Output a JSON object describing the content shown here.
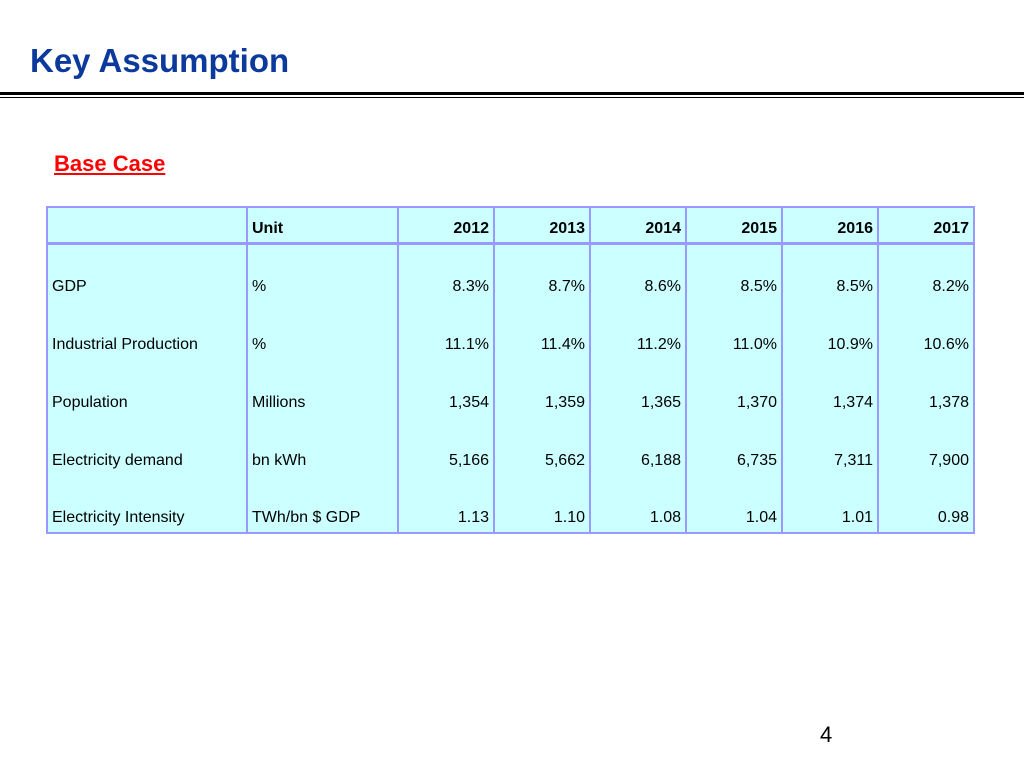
{
  "slide": {
    "title": "Key Assumption",
    "section_heading": "Base Case",
    "page_number": "4"
  },
  "table": {
    "header": {
      "label": "",
      "unit": "Unit",
      "years": [
        "2012",
        "2013",
        "2014",
        "2015",
        "2016",
        "2017"
      ]
    },
    "rows": [
      {
        "label": "GDP",
        "unit": "%",
        "values": [
          "8.3%",
          "8.7%",
          "8.6%",
          "8.5%",
          "8.5%",
          "8.2%"
        ]
      },
      {
        "label": "Industrial Production",
        "unit": "%",
        "values": [
          "11.1%",
          "11.4%",
          "11.2%",
          "11.0%",
          "10.9%",
          "10.6%"
        ]
      },
      {
        "label": "Population",
        "unit": "Millions",
        "values": [
          "1,354",
          "1,359",
          "1,365",
          "1,370",
          "1,374",
          "1,378"
        ]
      },
      {
        "label": "Electricity demand",
        "unit": "bn kWh",
        "values": [
          "5,166",
          "5,662",
          "6,188",
          "6,735",
          "7,311",
          "7,900"
        ]
      },
      {
        "label": "Electricity Intensity",
        "unit": "TWh/bn $ GDP",
        "values": [
          "1.13",
          "1.10",
          "1.08",
          "1.04",
          "1.01",
          "0.98"
        ]
      }
    ]
  },
  "colors": {
    "title": "#0b3a9c",
    "section_heading": "#ff0000",
    "table_fill": "#ccffff",
    "table_border": "#9999ff"
  }
}
